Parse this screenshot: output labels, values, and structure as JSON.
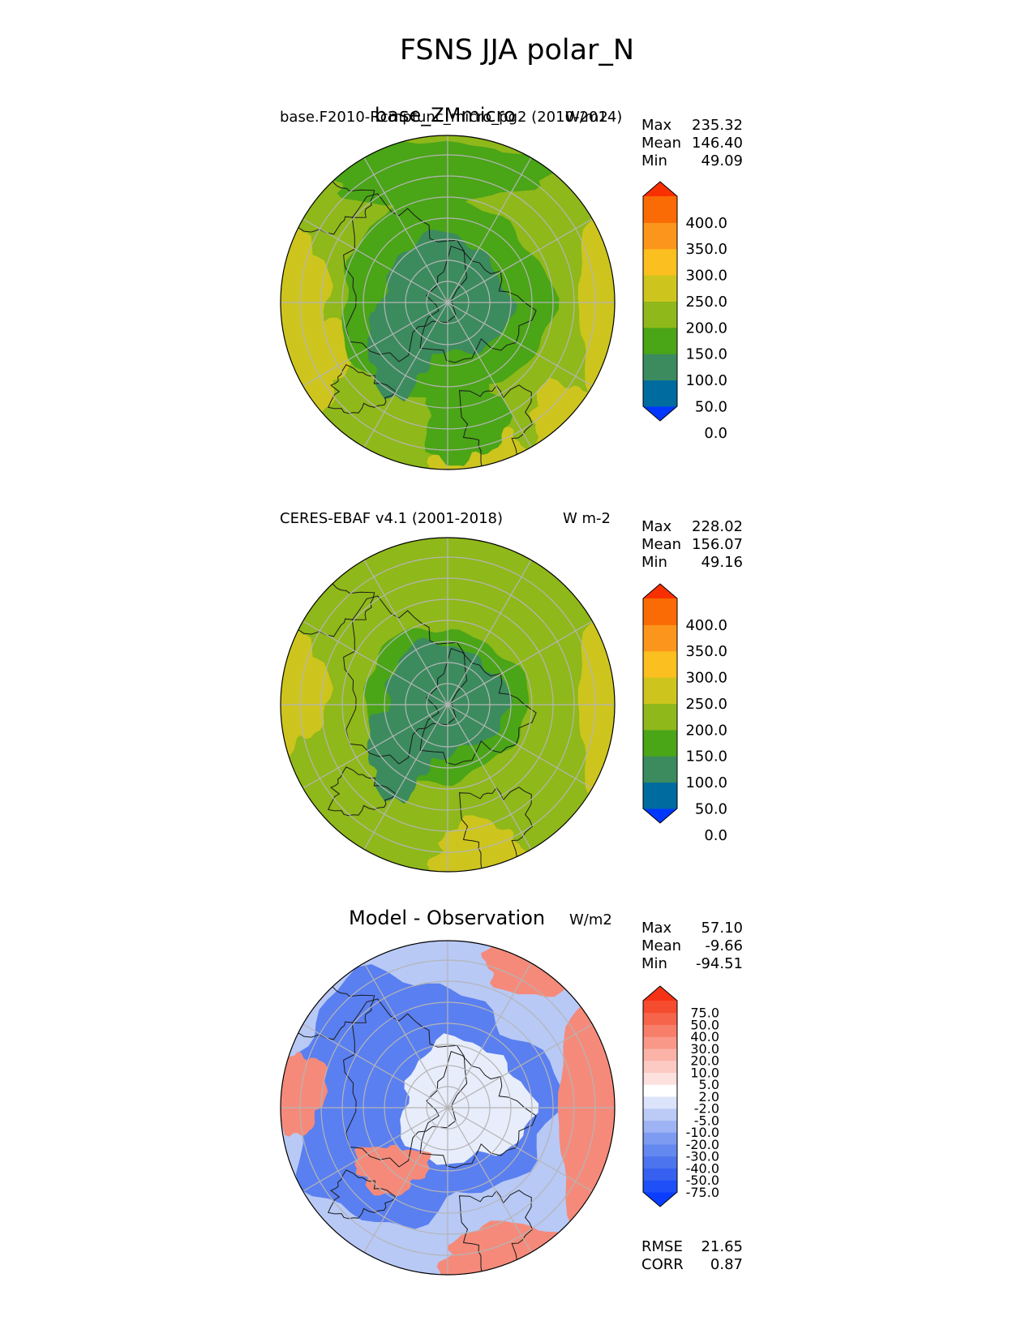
{
  "title": "FSNS JJA polar_N",
  "panels": [
    {
      "id": "test",
      "left_title": "base.F2010-Rcmpfunc_micro_pg2 (2010-2014)",
      "center_title": "base_ZMmicro",
      "units": "W/m2",
      "stats": {
        "max_label": "Max",
        "max": "235.32",
        "mean_label": "Mean",
        "mean": "146.40",
        "min_label": "Min",
        "min": "49.09"
      },
      "colorbar": {
        "ticks": [
          "400.0",
          "350.0",
          "300.0",
          "250.0",
          "200.0",
          "150.0",
          "100.0",
          "50.0",
          "0.0"
        ],
        "colors": [
          "#0037ff",
          "#006b9f",
          "#3b8b5e",
          "#4aa517",
          "#8fb81a",
          "#cdc51e",
          "#fbbf1f",
          "#fb951b",
          "#fa6a05",
          "#f83001"
        ]
      }
    },
    {
      "id": "reference",
      "left_title": "CERES-EBAF v4.1 (2001-2018)",
      "center_title": "",
      "units": "W m-2",
      "stats": {
        "max_label": "Max",
        "max": "228.02",
        "mean_label": "Mean",
        "mean": "156.07",
        "min_label": "Min",
        "min": "49.16"
      },
      "colorbar": {
        "ticks": [
          "400.0",
          "350.0",
          "300.0",
          "250.0",
          "200.0",
          "150.0",
          "100.0",
          "50.0",
          "0.0"
        ],
        "colors": [
          "#0037ff",
          "#006b9f",
          "#3b8b5e",
          "#4aa517",
          "#8fb81a",
          "#cdc51e",
          "#fbbf1f",
          "#fb951b",
          "#fa6a05",
          "#f83001"
        ]
      }
    },
    {
      "id": "diff",
      "left_title": "",
      "center_title": "Model - Observation",
      "units": "W/m2",
      "stats": {
        "max_label": "Max",
        "max": "57.10",
        "mean_label": "Mean",
        "mean": "-9.66",
        "min_label": "Min",
        "min": "-94.51"
      },
      "metrics": {
        "rmse_label": "RMSE",
        "rmse": "21.65",
        "corr_label": "CORR",
        "corr": "0.87"
      },
      "colorbar": {
        "ticks": [
          "75.0",
          "50.0",
          "40.0",
          "30.0",
          "20.0",
          "10.0",
          "5.0",
          "2.0",
          "-2.0",
          "-5.0",
          "-10.0",
          "-20.0",
          "-30.0",
          "-40.0",
          "-50.0",
          "-75.0"
        ],
        "colors": [
          "#0a3dfe",
          "#1f4ff6",
          "#3560f0",
          "#4c74ef",
          "#6388f0",
          "#7d9bf0",
          "#9eb3f3",
          "#bccbf6",
          "#dce4fb",
          "#ffffff",
          "#fde1de",
          "#fccac3",
          "#fbb3a8",
          "#f99888",
          "#f77e69",
          "#f6644b",
          "#f54b2f",
          "#f53216"
        ]
      }
    }
  ],
  "map_colors": {
    "ocean_mid": "#8fb81a",
    "arctic": "#3b8b5e",
    "ring": "#4aa517",
    "bright": "#cdc51e",
    "diff_blue": "#5a7ff0",
    "diff_lightblue": "#b8c9f6",
    "diff_red": "#f58a7a",
    "diff_pale": "#e8edfb"
  }
}
